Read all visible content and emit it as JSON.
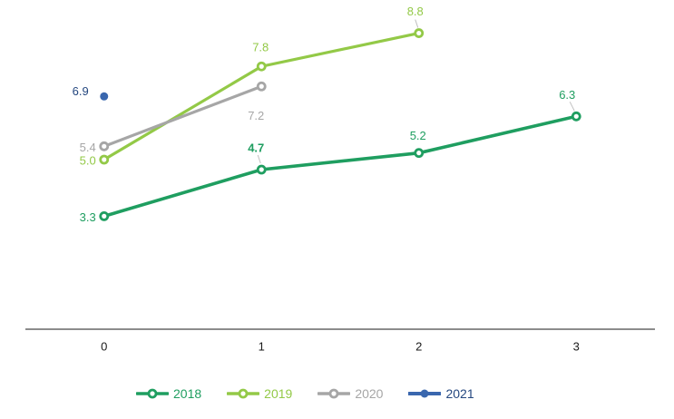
{
  "chart_data": {
    "type": "line",
    "title": "",
    "x": [
      0,
      1,
      2,
      3
    ],
    "x_tick_labels": [
      "0",
      "1",
      "2",
      "3"
    ],
    "ylim": [
      0,
      9.8
    ],
    "grid": false,
    "legend_position": "bottom",
    "background": "#ffffff",
    "axis_color": "#1a1a1a",
    "tick_label_color": "#1a1a1a",
    "leader_line_color": "#bfbfbf",
    "series": [
      {
        "name": "2018",
        "color": "#1F9E60",
        "marker": "open",
        "line_width": 3.6,
        "values": [
          3.3,
          4.7,
          5.2,
          6.3
        ],
        "point_labels": [
          {
            "text": "3.3",
            "anchor": "end",
            "dx": -9,
            "dy": 1
          },
          {
            "text": "4.7",
            "anchor": "middle",
            "dx": -6,
            "dy": -24,
            "bold": true,
            "leader": [
              -4,
              -16,
              -1,
              -7
            ]
          },
          {
            "text": "5.2",
            "anchor": "middle",
            "dx": -1,
            "dy": -19
          },
          {
            "text": "6.3",
            "anchor": "middle",
            "dx": -10,
            "dy": -24,
            "leader": [
              -7,
              -16,
              -2,
              -6
            ]
          }
        ]
      },
      {
        "name": "2019",
        "color": "#93C947",
        "marker": "open",
        "line_width": 3.2,
        "values": [
          5.0,
          7.8,
          8.8,
          null
        ],
        "point_labels": [
          {
            "text": "5.0",
            "anchor": "end",
            "dx": -9,
            "dy": 1
          },
          {
            "text": "7.8",
            "anchor": "middle",
            "dx": -1,
            "dy": -21
          },
          {
            "text": "8.8",
            "anchor": "middle",
            "dx": -4,
            "dy": -24,
            "leader": [
              -4,
              -15,
              -1,
              -6
            ]
          },
          null
        ]
      },
      {
        "name": "2020",
        "color": "#A6A6A6",
        "marker": "open",
        "line_width": 3.2,
        "values": [
          5.4,
          7.2,
          null,
          null
        ],
        "point_labels": [
          {
            "text": "5.4",
            "anchor": "end",
            "dx": -9,
            "dy": 1
          },
          {
            "text": "7.2",
            "anchor": "middle",
            "dx": -6,
            "dy": 32
          },
          null,
          null
        ]
      },
      {
        "name": "2021",
        "color": "#3A67AE",
        "label_color": "#24477F",
        "marker": "filled",
        "line_width": 3.6,
        "values": [
          6.9,
          null,
          null,
          null
        ],
        "point_labels": [
          {
            "text": "6.9",
            "anchor": "end",
            "dx": -17,
            "dy": -6
          },
          null,
          null,
          null
        ]
      }
    ]
  }
}
